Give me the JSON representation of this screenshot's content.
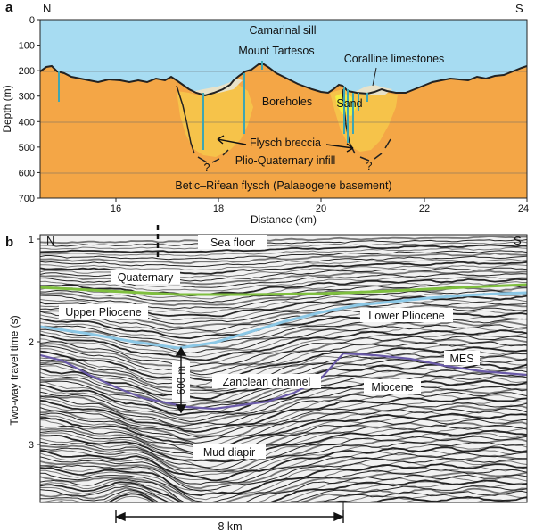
{
  "panel_a": {
    "label": "a",
    "north": "N",
    "south": "S",
    "y_axis_title": "Depth (m)",
    "x_axis_title": "Distance (km)",
    "y_ticks": [
      "0",
      "100",
      "200",
      "300",
      "400",
      "500",
      "600",
      "700"
    ],
    "x_ticks": [
      "16",
      "18",
      "20",
      "22",
      "24"
    ],
    "annotations": {
      "camarinal": "Camarinal sill",
      "tartesos": "Mount Tartesos",
      "coralline": "Coralline limestones",
      "boreholes": "Boreholes",
      "sand": "Sand",
      "flysch_breccia": "Flysch breccia",
      "infill": "Plio-Quaternary infill",
      "basement": "Betic–Rifean flysch (Palaeogene basement)",
      "q_left": "?",
      "q_right": "?"
    },
    "colors": {
      "water": "#a7dcf2",
      "basement": "#f4a646",
      "infill": "#f6c34a",
      "breccia": "#fde08f",
      "limestone": "#e8e2c9",
      "sand": "#f2ee40",
      "borehole": "#3fa6b2"
    }
  },
  "panel_b": {
    "label": "b",
    "north": "N",
    "south": "S",
    "y_axis_title": "Two-way travel time (s)",
    "y_ticks": [
      "1",
      "2",
      "3"
    ],
    "annotations": {
      "sea_floor": "Sea floor",
      "quaternary": "Quaternary",
      "upper_pliocene": "Upper Pliocene",
      "lower_pliocene": "Lower Pliocene",
      "mes": "MES",
      "zanclean": "Zanclean channel",
      "miocene": "Miocene",
      "mud_diapir": "Mud diapir",
      "thickness": "600 m",
      "scale": "8 km"
    },
    "colors": {
      "quaternary_line": "#7fbf3f",
      "pliocene_line": "#8cc8e6",
      "mes_line": "#6a5aa8"
    }
  }
}
